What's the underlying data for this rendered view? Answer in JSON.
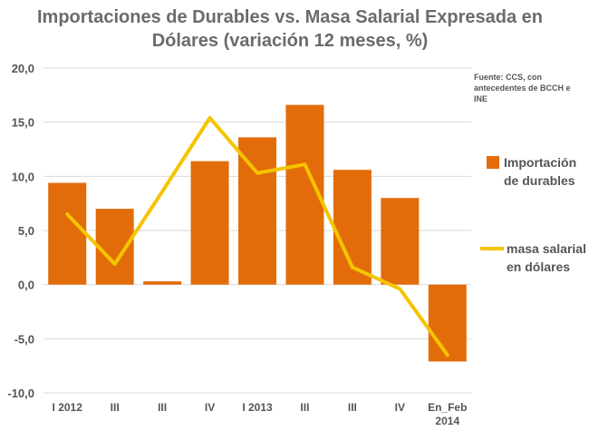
{
  "chart_data": {
    "type": "bar",
    "title_lines": [
      "Importaciones de Durables vs. Masa Salarial Expresada en",
      "Dólares (variación 12 meses, %)"
    ],
    "source": "Fuente: CCS, con antecedentes de BCCH e INE",
    "categories": [
      [
        "I 2012"
      ],
      [
        "III"
      ],
      [
        "III"
      ],
      [
        "IV"
      ],
      [
        "I 2013"
      ],
      [
        "III"
      ],
      [
        "III"
      ],
      [
        "IV"
      ],
      [
        "En_Feb",
        "2014"
      ]
    ],
    "ylim": [
      -10,
      20
    ],
    "yticks": [
      20,
      15,
      10,
      5,
      0,
      -5,
      -10
    ],
    "ytick_labels": [
      "20,0",
      "15,0",
      "10,0",
      "5,0",
      "0,0",
      "-5,0",
      "-10,0"
    ],
    "grid": true,
    "legend_position": "right",
    "series": [
      {
        "name": "Importación de durables",
        "legend_lines": [
          "Importación",
          "de durables"
        ],
        "type": "bar",
        "color": "#e36c0a",
        "values": [
          9.4,
          7.0,
          0.3,
          11.4,
          13.6,
          16.6,
          10.6,
          8.0,
          -7.1
        ]
      },
      {
        "name": "masa salarial en dólares",
        "legend_lines": [
          "masa salarial",
          "en dólares"
        ],
        "type": "line",
        "color": "#f5c400",
        "values": [
          6.5,
          1.9,
          8.6,
          15.4,
          10.3,
          11.1,
          1.6,
          -0.4,
          -6.5
        ]
      }
    ]
  }
}
